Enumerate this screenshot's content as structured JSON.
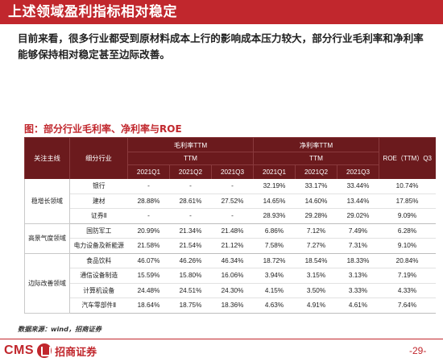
{
  "page": {
    "title": "上述领域盈利指标相对稳定",
    "intro": "目前来看，很多行业都受到原材料成本上行的影响成本压力较大，部分行业毛利率和净利率能够保持相对稳定甚至边际改善。",
    "figure_title": "图：部分行业毛利率、净利率与ROE",
    "source": "数据来源：wind，招商证券",
    "page_number": "-29-"
  },
  "logo": {
    "cms": "CMS",
    "brand": "招商证券"
  },
  "colors": {
    "brand_red": "#c1272d",
    "header_bg": "#6b1a1d"
  },
  "table": {
    "headers": {
      "main_line": "关注主线",
      "sub_industry": "细分行业",
      "gross_margin": "毛利率TTM",
      "net_margin": "净利率TTM",
      "ttm": "TTM",
      "roe": "ROE（TTM）Q3",
      "gross_quarters": [
        "2021Q1",
        "2021Q2",
        "2021Q3"
      ],
      "net_quarters": [
        "2021Q1",
        "2021Q2",
        "2021Q3"
      ]
    },
    "groups": [
      {
        "name": "稳增长领域",
        "rows": [
          {
            "industry": "银行",
            "gm": [
              "-",
              "-",
              "-"
            ],
            "nm": [
              "32.19%",
              "33.17%",
              "33.44%"
            ],
            "roe": "10.74%"
          },
          {
            "industry": "建材",
            "gm": [
              "28.88%",
              "28.61%",
              "27.52%"
            ],
            "nm": [
              "14.65%",
              "14.60%",
              "13.44%"
            ],
            "roe": "17.85%"
          },
          {
            "industry": "证券Ⅱ",
            "gm": [
              "-",
              "-",
              "-"
            ],
            "nm": [
              "28.93%",
              "29.28%",
              "29.02%"
            ],
            "roe": "9.09%"
          }
        ]
      },
      {
        "name": "高景气度领域",
        "rows": [
          {
            "industry": "国防军工",
            "gm": [
              "20.99%",
              "21.34%",
              "21.48%"
            ],
            "nm": [
              "6.86%",
              "7.12%",
              "7.49%"
            ],
            "roe": "6.28%"
          },
          {
            "industry": "电力设备及新能源",
            "gm": [
              "21.58%",
              "21.54%",
              "21.12%"
            ],
            "nm": [
              "7.58%",
              "7.27%",
              "7.31%"
            ],
            "roe": "9.10%"
          }
        ]
      },
      {
        "name": "边际改善领域",
        "rows": [
          {
            "industry": "食品饮料",
            "gm": [
              "46.07%",
              "46.26%",
              "46.34%"
            ],
            "nm": [
              "18.72%",
              "18.54%",
              "18.33%"
            ],
            "roe": "20.84%"
          },
          {
            "industry": "通信设备制造",
            "gm": [
              "15.59%",
              "15.80%",
              "16.06%"
            ],
            "nm": [
              "3.94%",
              "3.15%",
              "3.13%"
            ],
            "roe": "7.19%"
          },
          {
            "industry": "计算机设备",
            "gm": [
              "24.48%",
              "24.51%",
              "24.30%"
            ],
            "nm": [
              "4.15%",
              "3.50%",
              "3.33%"
            ],
            "roe": "4.33%"
          },
          {
            "industry": "汽车零部件Ⅱ",
            "gm": [
              "18.64%",
              "18.75%",
              "18.36%"
            ],
            "nm": [
              "4.63%",
              "4.91%",
              "4.61%"
            ],
            "roe": "7.64%"
          }
        ]
      }
    ]
  }
}
